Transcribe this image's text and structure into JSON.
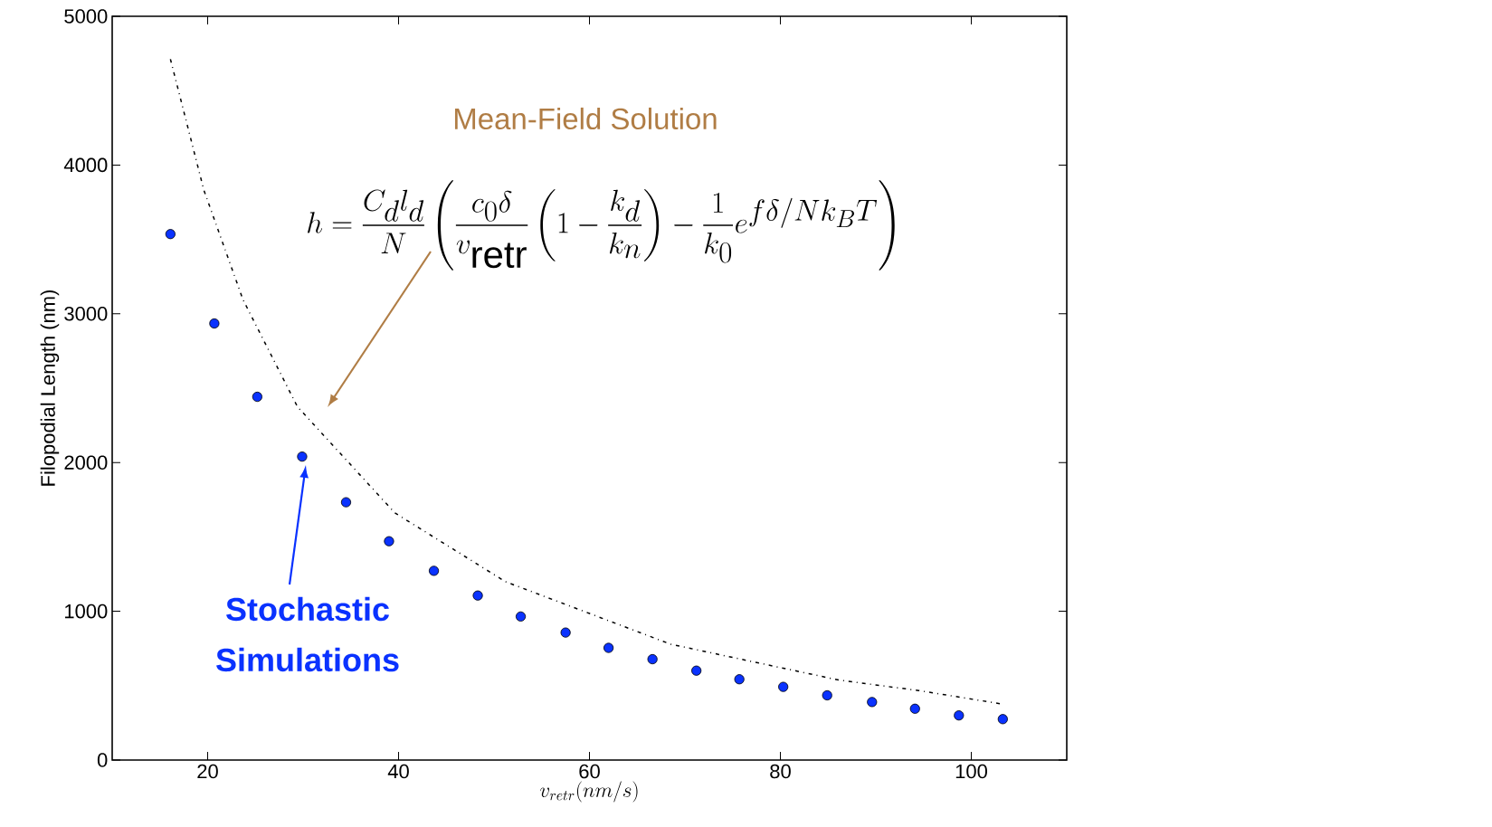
{
  "chart_data": {
    "type": "scatter",
    "xlabel": "v_{retr}(nm/s)",
    "ylabel": "Filopodial Length (nm)",
    "xlim": [
      10,
      110
    ],
    "xticks": [
      20,
      40,
      60,
      80,
      100
    ],
    "ylim": [
      0,
      5000
    ],
    "yticks": [
      0,
      1000,
      2000,
      3000,
      4000,
      5000
    ],
    "grid": false,
    "series": [
      {
        "color": "#0a32ff",
        "marker": "circle",
        "x": [
          16.1,
          20.7,
          25.2,
          29.9,
          34.5,
          39.0,
          43.7,
          48.3,
          52.8,
          57.5,
          62.0,
          66.6,
          71.2,
          75.7,
          80.3,
          84.9,
          89.6,
          94.1,
          98.7,
          103.3
        ],
        "values": [
          3536,
          2935,
          2442,
          2040,
          1733,
          1471,
          1272,
          1106,
          965,
          857,
          754,
          678,
          601,
          543,
          492,
          435,
          390,
          345,
          300,
          275
        ]
      },
      {
        "type": "line",
        "color": "#000000",
        "marker": "none",
        "line_style": "dotted",
        "x": [
          16.1,
          19.6,
          23.7,
          29.4,
          39.6,
          51.2,
          68.5,
          86.1,
          94.5,
          103.2
        ],
        "values": [
          4712,
          3832,
          3095,
          2376,
          1662,
          1199,
          779,
          538,
          467,
          377
        ]
      }
    ],
    "annotations": [
      "Mean-Field Solution",
      "Stochastic Simulations",
      "h=\\frac{C_dl_d}{N}\\left(\\frac{c_0\\delta}{v_{\\mathrm{retr}}}\\left(1-\\frac{k_d}{k_n}\\right)-\\frac{1}{k_0}e^{f\\delta/Nk_BT}\\right)"
    ]
  }
}
